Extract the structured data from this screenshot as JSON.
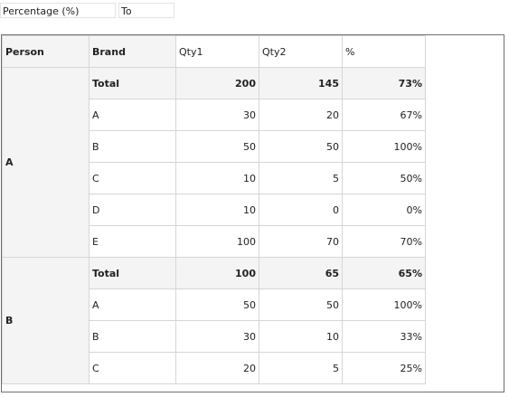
{
  "filters": {
    "percentage_label": "Percentage (%)",
    "to_label": "To"
  },
  "headers": {
    "person": "Person",
    "brand": "Brand",
    "qty1": "Qty1",
    "qty2": "Qty2",
    "pct": "%"
  },
  "groups": [
    {
      "person": "A",
      "rows": [
        {
          "brand": "Total",
          "qty1": "200",
          "qty2": "145",
          "pct": "73%",
          "total": true
        },
        {
          "brand": "A",
          "qty1": "30",
          "qty2": "20",
          "pct": "67%"
        },
        {
          "brand": "B",
          "qty1": "50",
          "qty2": "50",
          "pct": "100%"
        },
        {
          "brand": "C",
          "qty1": "10",
          "qty2": "5",
          "pct": "50%"
        },
        {
          "brand": "D",
          "qty1": "10",
          "qty2": "0",
          "pct": "0%"
        },
        {
          "brand": "E",
          "qty1": "100",
          "qty2": "70",
          "pct": "70%"
        }
      ]
    },
    {
      "person": "B",
      "rows": [
        {
          "brand": "Total",
          "qty1": "100",
          "qty2": "65",
          "pct": "65%",
          "total": true
        },
        {
          "brand": "A",
          "qty1": "50",
          "qty2": "50",
          "pct": "100%"
        },
        {
          "brand": "B",
          "qty1": "30",
          "qty2": "10",
          "pct": "33%"
        },
        {
          "brand": "C",
          "qty1": "20",
          "qty2": "5",
          "pct": "25%"
        }
      ]
    }
  ]
}
